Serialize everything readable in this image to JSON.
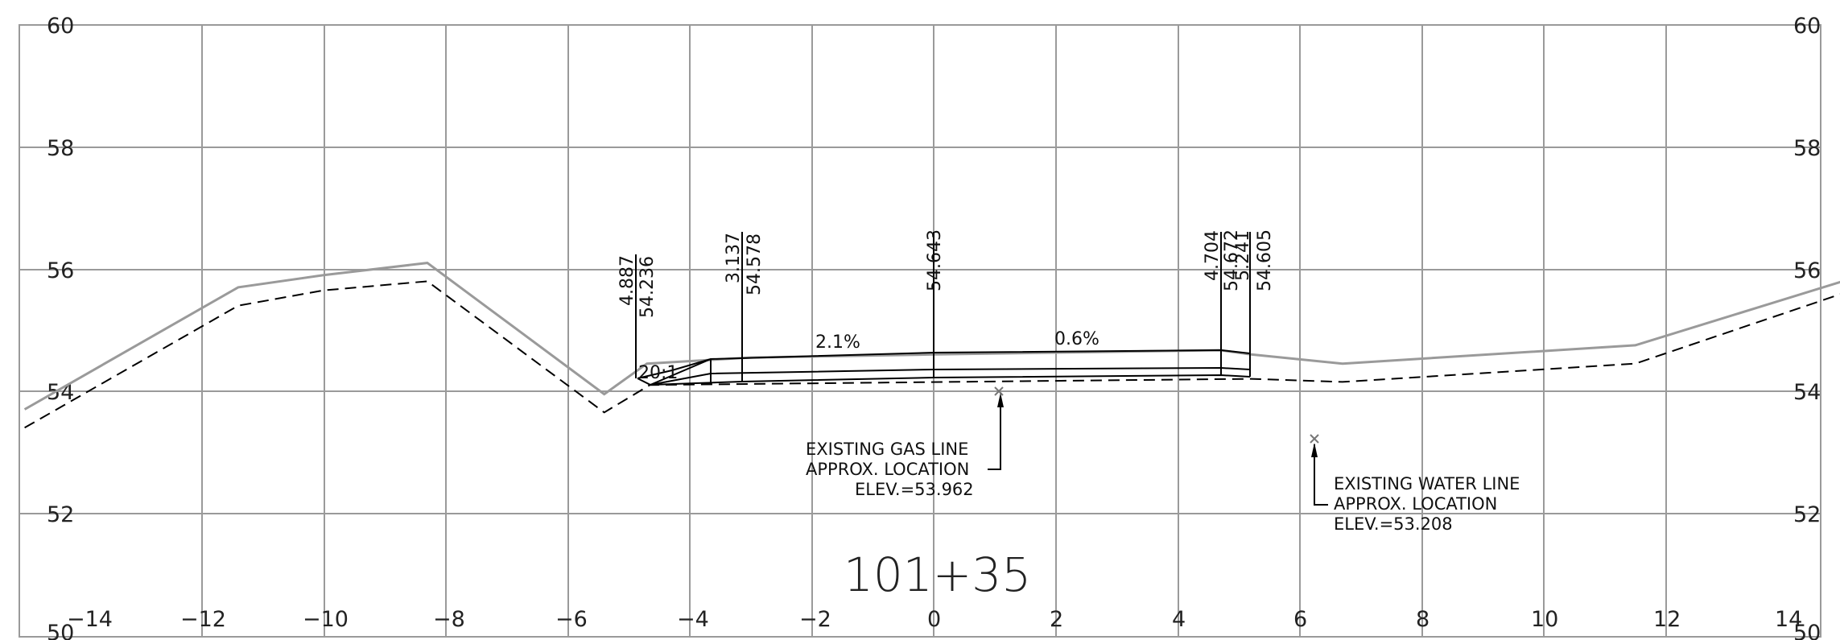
{
  "station": "101+35",
  "axes": {
    "x_ticks": [
      "−14",
      "−12",
      "−10",
      "−8",
      "−6",
      "−4",
      "−2",
      "0",
      "2",
      "4",
      "6",
      "8",
      "10",
      "12",
      "14"
    ],
    "y_ticks_left": [
      "50",
      "52",
      "54",
      "56",
      "58",
      "60"
    ],
    "y_ticks_right": [
      "50",
      "52",
      "54",
      "56",
      "58",
      "60"
    ]
  },
  "profiles": {
    "existing_ground": [
      [
        -14.9,
        53.7
      ],
      [
        -11.4,
        55.7
      ],
      [
        -10.0,
        55.9
      ],
      [
        -8.3,
        56.1
      ],
      [
        -5.4,
        53.95
      ],
      [
        -4.7,
        54.45
      ],
      [
        -3.0,
        54.55
      ],
      [
        0.0,
        54.6
      ],
      [
        4.7,
        54.67
      ],
      [
        5.2,
        54.6
      ],
      [
        6.7,
        54.45
      ],
      [
        11.5,
        54.75
      ],
      [
        14.9,
        55.8
      ]
    ],
    "subgrade": [
      [
        -14.9,
        53.4
      ],
      [
        -11.4,
        55.4
      ],
      [
        -10.0,
        55.65
      ],
      [
        -8.3,
        55.8
      ],
      [
        -5.4,
        53.65
      ],
      [
        -4.65,
        54.1
      ],
      [
        5.2,
        54.2
      ],
      [
        6.7,
        54.15
      ],
      [
        11.5,
        54.45
      ],
      [
        14.9,
        55.6
      ]
    ]
  },
  "dimension_labels": [
    {
      "id": "offset-left",
      "text": "4.887"
    },
    {
      "id": "elev-left",
      "text": "54.236"
    },
    {
      "id": "offset-mid-left",
      "text": "3.137"
    },
    {
      "id": "elev-mid-left",
      "text": "54.578"
    },
    {
      "id": "elev-center",
      "text": "54.643"
    },
    {
      "id": "offset-right-1",
      "text": "4.704"
    },
    {
      "id": "elev-right-1",
      "text": "54.672"
    },
    {
      "id": "offset-right-2",
      "text": "5.241"
    },
    {
      "id": "elev-right-2",
      "text": "54.605"
    }
  ],
  "slopes": {
    "left": "2.1%",
    "right": "0.6%",
    "side": "20:1"
  },
  "utilities": {
    "gas": {
      "line1": "EXISTING GAS LINE",
      "line2": "APPROX. LOCATION",
      "line3": "ELEV.=53.962"
    },
    "water": {
      "line1": "EXISTING WATER LINE",
      "line2": "APPROX. LOCATION",
      "line3": "ELEV.=53.208"
    }
  }
}
